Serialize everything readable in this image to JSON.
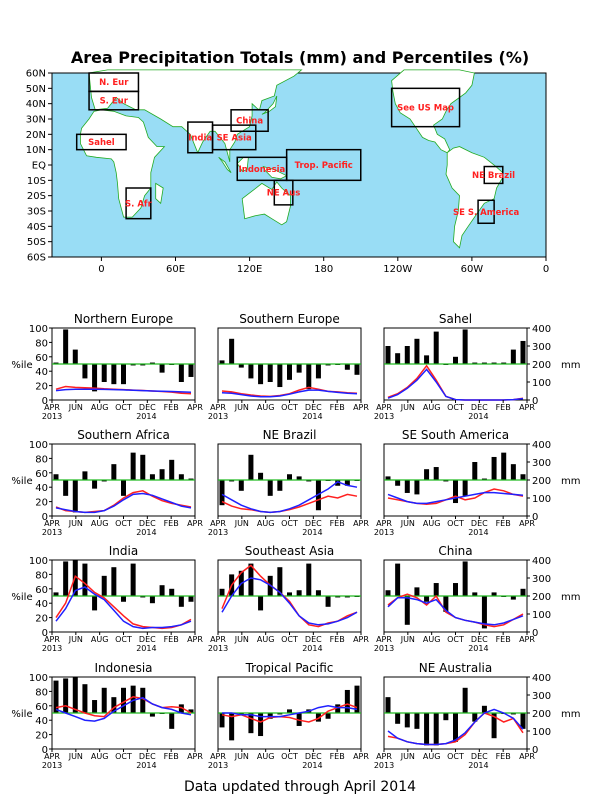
{
  "title": "Area Precipitation Totals (mm) and Percentiles (%)",
  "footer": "Data updated through April 2014",
  "map": {
    "lat_labels": [
      "60N",
      "50N",
      "40N",
      "30N",
      "20N",
      "10N",
      "EQ",
      "10S",
      "20S",
      "30S",
      "40S",
      "50S",
      "60S"
    ],
    "lon_labels": [
      {
        "lon": 0,
        "label": "0"
      },
      {
        "lon": 60,
        "label": "60E"
      },
      {
        "lon": 120,
        "label": "120E"
      },
      {
        "lon": 180,
        "label": "180"
      },
      {
        "lon": 240,
        "label": "120W"
      },
      {
        "lon": 300,
        "label": "60W"
      },
      {
        "lon": 360,
        "label": "0"
      }
    ],
    "lon_min": -40,
    "lon_max": 360,
    "lat_min": -60,
    "lat_max": 60,
    "colors": {
      "ocean": "#99ddf5",
      "land": "#ffffff",
      "coast": "#22aa22",
      "label": "#ff2020"
    },
    "regions": [
      {
        "name": "N. Eur",
        "lon0": -10,
        "lon1": 30,
        "lat0": 48,
        "lat1": 60
      },
      {
        "name": "S. Eur",
        "lon0": -10,
        "lon1": 30,
        "lat0": 36,
        "lat1": 48
      },
      {
        "name": "Sahel",
        "lon0": -20,
        "lon1": 20,
        "lat0": 10,
        "lat1": 20
      },
      {
        "name": "S. Afr",
        "lon0": 20,
        "lon1": 40,
        "lat0": -35,
        "lat1": -15
      },
      {
        "name": "India",
        "lon0": 70,
        "lon1": 90,
        "lat0": 8,
        "lat1": 28
      },
      {
        "name": "SE Asia",
        "lon0": 90,
        "lon1": 125,
        "lat0": 10,
        "lat1": 26
      },
      {
        "name": "China",
        "lon0": 105,
        "lon1": 135,
        "lat0": 22,
        "lat1": 36
      },
      {
        "name": "Indonesia",
        "lon0": 110,
        "lon1": 150,
        "lat0": -10,
        "lat1": 5
      },
      {
        "name": "Trop. Pacific",
        "lon0": 150,
        "lon1": 210,
        "lat0": -10,
        "lat1": 10
      },
      {
        "name": "NE Aus",
        "lon0": 140,
        "lon1": 155,
        "lat0": -26,
        "lat1": -10
      },
      {
        "name": "See US Map",
        "lon0": 235,
        "lon1": 290,
        "lat0": 25,
        "lat1": 50
      },
      {
        "name": "NE Brazil",
        "lon0": 310,
        "lon1": 325,
        "lat0": -12,
        "lat1": -1
      },
      {
        "name": "SE S. America",
        "lon0": 305,
        "lon1": 318,
        "lat0": -38,
        "lat1": -23
      }
    ]
  },
  "chart_data": [
    {
      "type": "bar",
      "title": "Northern Europe",
      "ylabel": "%ile",
      "y2label": "",
      "ylim": [
        0,
        100
      ],
      "y2lim": [
        0,
        400
      ],
      "percentiles": [
        52,
        98,
        70,
        30,
        12,
        25,
        22,
        22,
        48,
        48,
        52,
        38,
        50,
        25,
        32
      ],
      "series": [
        {
          "name": "",
          "color": "#ff2020",
          "values": [
            60,
            75,
            70,
            68,
            66,
            62,
            60,
            58,
            55,
            53,
            50,
            47,
            44,
            38,
            35
          ]
        },
        {
          "name": "",
          "color": "#2020ff",
          "values": [
            52,
            58,
            60,
            60,
            60,
            59,
            58,
            56,
            54,
            52,
            50,
            49,
            47,
            45,
            43
          ]
        }
      ]
    },
    {
      "type": "bar",
      "title": "Southern Europe",
      "ylabel": "",
      "y2label": "",
      "ylim": [
        0,
        100
      ],
      "y2lim": [
        0,
        400
      ],
      "percentiles": [
        55,
        85,
        45,
        30,
        22,
        25,
        18,
        28,
        38,
        15,
        30,
        48,
        50,
        42,
        35
      ],
      "series": [
        {
          "name": "",
          "color": "#ff2020",
          "values": [
            50,
            45,
            35,
            28,
            22,
            20,
            25,
            35,
            55,
            70,
            60,
            48,
            45,
            40,
            38
          ]
        },
        {
          "name": "",
          "color": "#2020ff",
          "values": [
            40,
            38,
            30,
            22,
            18,
            18,
            22,
            32,
            45,
            55,
            55,
            48,
            42,
            38,
            35
          ]
        }
      ]
    },
    {
      "type": "bar",
      "title": "Sahel",
      "ylabel": "",
      "y2label": "mm",
      "ylim": [
        0,
        100
      ],
      "y2lim": [
        0,
        400
      ],
      "percentiles": [
        75,
        65,
        75,
        85,
        62,
        95,
        50,
        60,
        98,
        52,
        52,
        52,
        52,
        70,
        82
      ],
      "series": [
        {
          "name": "",
          "color": "#ff2020",
          "values": [
            15,
            35,
            70,
            120,
            190,
            110,
            20,
            2,
            0,
            0,
            0,
            0,
            0,
            2,
            10
          ]
        },
        {
          "name": "",
          "color": "#2020ff",
          "values": [
            10,
            30,
            65,
            110,
            170,
            100,
            20,
            2,
            0,
            0,
            0,
            0,
            0,
            2,
            8
          ]
        }
      ]
    },
    {
      "type": "bar",
      "title": "Southern Africa",
      "ylabel": "%ile",
      "y2label": "",
      "ylim": [
        0,
        100
      ],
      "y2lim": [
        0,
        400
      ],
      "percentiles": [
        58,
        28,
        5,
        62,
        38,
        48,
        72,
        28,
        88,
        85,
        58,
        65,
        78,
        58,
        52
      ],
      "series": [
        {
          "name": "",
          "color": "#ff2020",
          "values": [
            50,
            30,
            25,
            20,
            25,
            30,
            60,
            100,
            130,
            140,
            110,
            85,
            70,
            60,
            50
          ]
        },
        {
          "name": "",
          "color": "#2020ff",
          "values": [
            45,
            35,
            25,
            20,
            20,
            30,
            55,
            90,
            120,
            125,
            115,
            95,
            75,
            55,
            45
          ]
        }
      ]
    },
    {
      "type": "bar",
      "title": "NE Brazil",
      "ylabel": "",
      "y2label": "",
      "ylim": [
        0,
        100
      ],
      "y2lim": [
        0,
        400
      ],
      "percentiles": [
        15,
        48,
        35,
        85,
        60,
        28,
        35,
        58,
        55,
        48,
        8,
        50,
        42,
        42,
        50
      ],
      "series": [
        {
          "name": "",
          "color": "#ff2020",
          "values": [
            80,
            55,
            40,
            35,
            25,
            20,
            25,
            35,
            50,
            70,
            90,
            110,
            100,
            120,
            110
          ]
        },
        {
          "name": "",
          "color": "#2020ff",
          "values": [
            120,
            90,
            60,
            40,
            25,
            20,
            25,
            40,
            60,
            90,
            120,
            150,
            190,
            170,
            160
          ]
        }
      ]
    },
    {
      "type": "bar",
      "title": "SE South America",
      "ylabel": "",
      "y2label": "mm",
      "ylim": [
        0,
        100
      ],
      "y2lim": [
        0,
        400
      ],
      "percentiles": [
        55,
        42,
        32,
        30,
        65,
        68,
        48,
        18,
        28,
        75,
        52,
        82,
        88,
        72,
        58
      ],
      "series": [
        {
          "name": "",
          "color": "#ff2020",
          "values": [
            100,
            90,
            80,
            70,
            65,
            70,
            90,
            110,
            90,
            100,
            130,
            150,
            140,
            120,
            110
          ]
        },
        {
          "name": "",
          "color": "#2020ff",
          "values": [
            120,
            100,
            80,
            70,
            70,
            80,
            90,
            100,
            110,
            120,
            130,
            130,
            125,
            120,
            115
          ]
        }
      ]
    },
    {
      "type": "bar",
      "title": "India",
      "ylabel": "%ile",
      "y2label": "",
      "ylim": [
        0,
        100
      ],
      "y2lim": [
        0,
        400
      ],
      "percentiles": [
        55,
        98,
        100,
        95,
        30,
        78,
        90,
        42,
        95,
        48,
        40,
        65,
        60,
        35,
        42
      ],
      "series": [
        {
          "name": "",
          "color": "#ff2020",
          "values": [
            80,
            160,
            310,
            270,
            220,
            190,
            140,
            90,
            45,
            30,
            25,
            20,
            25,
            40,
            70
          ]
        },
        {
          "name": "",
          "color": "#2020ff",
          "values": [
            60,
            130,
            230,
            250,
            210,
            180,
            120,
            60,
            30,
            20,
            25,
            25,
            30,
            40,
            60
          ]
        }
      ]
    },
    {
      "type": "bar",
      "title": "Southeast Asia",
      "ylabel": "",
      "y2label": "",
      "ylim": [
        0,
        100
      ],
      "y2lim": [
        0,
        400
      ],
      "percentiles": [
        60,
        80,
        85,
        95,
        30,
        78,
        90,
        55,
        58,
        95,
        58,
        35,
        48,
        48,
        50
      ],
      "series": [
        {
          "name": "",
          "color": "#ff2020",
          "values": [
            130,
            260,
            330,
            370,
            310,
            260,
            220,
            170,
            90,
            40,
            30,
            50,
            60,
            90,
            110
          ]
        },
        {
          "name": "",
          "color": "#2020ff",
          "values": [
            110,
            200,
            270,
            300,
            290,
            260,
            220,
            160,
            90,
            50,
            40,
            45,
            60,
            80,
            110
          ]
        }
      ]
    },
    {
      "type": "bar",
      "title": "China",
      "ylabel": "",
      "y2label": "mm",
      "ylim": [
        0,
        100
      ],
      "y2lim": [
        0,
        400
      ],
      "percentiles": [
        58,
        95,
        10,
        62,
        42,
        68,
        28,
        68,
        98,
        55,
        5,
        55,
        50,
        45,
        60
      ],
      "series": [
        {
          "name": "",
          "color": "#ff2020",
          "values": [
            150,
            190,
            210,
            190,
            150,
            200,
            110,
            80,
            65,
            55,
            40,
            30,
            40,
            70,
            100
          ]
        },
        {
          "name": "",
          "color": "#2020ff",
          "values": [
            140,
            190,
            190,
            180,
            160,
            180,
            120,
            80,
            65,
            55,
            45,
            40,
            50,
            70,
            90
          ]
        }
      ]
    },
    {
      "type": "bar",
      "title": "Indonesia",
      "ylabel": "%ile",
      "y2label": "",
      "ylim": [
        0,
        100
      ],
      "y2lim": [
        0,
        400
      ],
      "percentiles": [
        95,
        98,
        100,
        90,
        68,
        85,
        72,
        85,
        88,
        85,
        45,
        50,
        28,
        62,
        55
      ],
      "series": [
        {
          "name": "",
          "color": "#ff2020",
          "values": [
            230,
            240,
            220,
            200,
            185,
            180,
            230,
            260,
            290,
            280,
            250,
            230,
            235,
            230,
            200
          ]
        },
        {
          "name": "",
          "color": "#2020ff",
          "values": [
            220,
            200,
            180,
            160,
            155,
            170,
            210,
            240,
            270,
            285,
            250,
            230,
            220,
            200,
            190
          ]
        }
      ]
    },
    {
      "type": "bar",
      "title": "Tropical Pacific",
      "ylabel": "",
      "y2label": "",
      "ylim": [
        0,
        100
      ],
      "y2lim": [
        0,
        400
      ],
      "percentiles": [
        30,
        12,
        48,
        22,
        18,
        42,
        48,
        55,
        32,
        55,
        38,
        42,
        62,
        82,
        88
      ],
      "series": [
        {
          "name": "",
          "color": "#ff2020",
          "values": [
            190,
            180,
            190,
            170,
            150,
            175,
            180,
            175,
            160,
            150,
            170,
            210,
            230,
            250,
            230
          ]
        },
        {
          "name": "",
          "color": "#2020ff",
          "values": [
            200,
            200,
            190,
            190,
            180,
            180,
            180,
            190,
            200,
            210,
            230,
            240,
            230,
            230,
            220
          ]
        }
      ]
    },
    {
      "type": "bar",
      "title": "NE Australia",
      "ylabel": "",
      "y2label": "mm",
      "ylim": [
        0,
        100
      ],
      "y2lim": [
        0,
        400
      ],
      "percentiles": [
        72,
        35,
        30,
        28,
        5,
        5,
        40,
        10,
        85,
        38,
        60,
        15,
        50,
        48,
        28
      ],
      "series": [
        {
          "name": "",
          "color": "#ff2020",
          "values": [
            70,
            60,
            40,
            30,
            25,
            25,
            30,
            40,
            80,
            150,
            200,
            180,
            150,
            170,
            90
          ]
        },
        {
          "name": "",
          "color": "#2020ff",
          "values": [
            100,
            60,
            40,
            30,
            25,
            25,
            30,
            50,
            90,
            150,
            200,
            220,
            200,
            170,
            110
          ]
        }
      ]
    }
  ],
  "axis": {
    "y_ticks": [
      "0",
      "20",
      "40",
      "60",
      "80",
      "100"
    ],
    "y2_ticks": [
      "0",
      "100",
      "200",
      "300",
      "400"
    ],
    "x_months": [
      "APR",
      "JUN",
      "AUG",
      "OCT",
      "DEC",
      "FEB",
      "APR"
    ],
    "x_years": [
      "2013",
      "2014"
    ],
    "ref_color": "#22bb22"
  }
}
